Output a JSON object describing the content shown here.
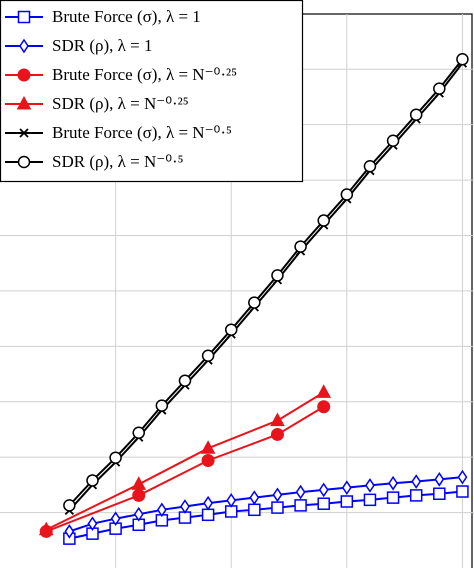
{
  "chart_data": {
    "type": "line",
    "xlim": [
      0,
      20.5
    ],
    "xticks": [
      5,
      10,
      15,
      20
    ],
    "ylim": [
      0,
      10.25
    ],
    "yticks": [
      1,
      2,
      3,
      4,
      5,
      6,
      7,
      8,
      9
    ],
    "grid": true,
    "legend": "upper left",
    "series": [
      {
        "name": "Brute Force (σ), λ = 1",
        "color": "#0000ff",
        "marker": "square",
        "x": [
          3,
          4,
          5,
          6,
          7,
          8,
          9,
          10,
          11,
          12,
          13,
          14,
          15,
          16,
          17,
          18,
          19,
          20
        ],
        "values": [
          0.53,
          0.62,
          0.71,
          0.78,
          0.86,
          0.91,
          0.96,
          1.02,
          1.05,
          1.09,
          1.13,
          1.16,
          1.2,
          1.23,
          1.27,
          1.31,
          1.34,
          1.38
        ]
      },
      {
        "name": "SDR (ρ), λ = 1",
        "color": "#0000ff",
        "marker": "diamond",
        "x": [
          3,
          4,
          5,
          6,
          7,
          8,
          9,
          10,
          11,
          12,
          13,
          14,
          15,
          16,
          17,
          18,
          19,
          20
        ],
        "values": [
          0.66,
          0.8,
          0.89,
          0.97,
          1.05,
          1.11,
          1.17,
          1.22,
          1.27,
          1.32,
          1.37,
          1.41,
          1.45,
          1.49,
          1.53,
          1.56,
          1.6,
          1.64
        ]
      },
      {
        "name": "Brute Force (σ), λ = N⁻⁰·²⁵",
        "color": "#e8141c",
        "marker": "circle",
        "x": [
          2,
          6,
          9,
          12,
          14
        ],
        "values": [
          0.66,
          1.31,
          1.94,
          2.41,
          2.91
        ]
      },
      {
        "name": "SDR (ρ), λ = N⁻⁰·²⁵",
        "color": "#e8141c",
        "marker": "triangle",
        "x": [
          2,
          6,
          9,
          12,
          14
        ],
        "values": [
          0.69,
          1.51,
          2.16,
          2.66,
          3.17
        ]
      },
      {
        "name": "Brute Force (σ), λ = N⁻⁰·⁵",
        "color": "#000000",
        "marker": "x",
        "x": [
          3,
          4,
          5,
          6,
          7,
          8,
          9,
          10,
          11,
          12,
          13,
          14,
          15,
          16,
          17,
          18,
          19,
          20
        ],
        "values": [
          1.04,
          1.5,
          1.91,
          2.36,
          2.85,
          3.3,
          3.75,
          4.22,
          4.71,
          5.2,
          5.72,
          6.19,
          6.66,
          7.17,
          7.63,
          8.1,
          8.57,
          9.11
        ]
      },
      {
        "name": "SDR (ρ), λ = N⁻⁰·⁵",
        "color": "#000000",
        "marker": "circle-open",
        "x": [
          3,
          4,
          5,
          6,
          7,
          8,
          9,
          10,
          11,
          12,
          13,
          14,
          15,
          16,
          17,
          18,
          19,
          20
        ],
        "values": [
          1.13,
          1.58,
          1.99,
          2.44,
          2.93,
          3.38,
          3.83,
          4.3,
          4.79,
          5.28,
          5.8,
          6.27,
          6.74,
          7.25,
          7.71,
          8.18,
          8.65,
          9.18
        ]
      }
    ]
  }
}
